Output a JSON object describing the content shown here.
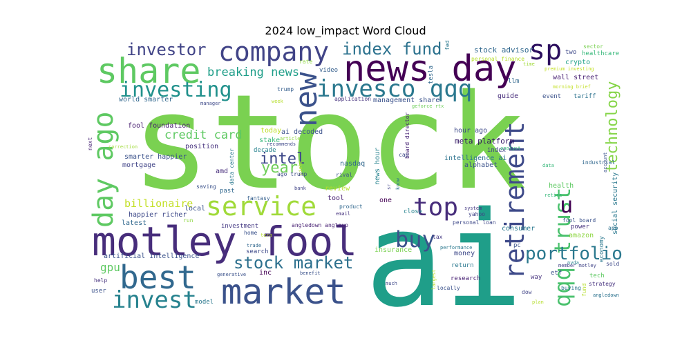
{
  "chart_data": {
    "type": "wordcloud",
    "title": "2024 low_impact Word Cloud",
    "words": [
      {
        "text": "stock",
        "color": "#7ad151"
      },
      {
        "text": "ai",
        "color": "#1f9e89"
      },
      {
        "text": "motley fool",
        "color": "#472d7b"
      },
      {
        "text": "news day",
        "color": "#440154"
      },
      {
        "text": "market",
        "color": "#3b528b"
      },
      {
        "text": "share",
        "color": "#5ec962"
      },
      {
        "text": "company",
        "color": "#414487"
      },
      {
        "text": "best",
        "color": "#31688e"
      },
      {
        "text": "service",
        "color": "#a0da39"
      },
      {
        "text": "day ago",
        "color": "#5ec962"
      },
      {
        "text": "retirement",
        "color": "#3e4a89"
      },
      {
        "text": "invest",
        "color": "#26828e"
      },
      {
        "text": "invesco qqq",
        "color": "#2a788e"
      },
      {
        "text": "new",
        "color": "#3b528b"
      },
      {
        "text": "sp",
        "color": "#2c0f5e"
      },
      {
        "text": "investing",
        "color": "#21918c"
      },
      {
        "text": "top",
        "color": "#472d7b"
      },
      {
        "text": "qqq trust",
        "color": "#4ac16d"
      },
      {
        "text": "stock market",
        "color": "#2d708e"
      },
      {
        "text": "portfolio",
        "color": "#2a788e"
      },
      {
        "text": "technology",
        "color": "#86d549"
      },
      {
        "text": "buy",
        "color": "#3b528b"
      },
      {
        "text": "index fund",
        "color": "#2c728e"
      },
      {
        "text": "investor",
        "color": "#414487"
      },
      {
        "text": "intel",
        "color": "#3e4989"
      },
      {
        "text": "year",
        "color": "#6ece58"
      },
      {
        "text": "u",
        "color": "#440154"
      },
      {
        "text": "breaking news",
        "color": "#1f9e89"
      },
      {
        "text": "credit card",
        "color": "#5ec962"
      },
      {
        "text": "billionaire",
        "color": "#c2df23"
      },
      {
        "text": "gpu",
        "color": "#5ec962"
      },
      {
        "text": "stock advisor",
        "color": "#31688e"
      },
      {
        "text": "tesla",
        "color": "#31688e"
      },
      {
        "text": "video",
        "color": "#355f8d"
      },
      {
        "text": "personal finance",
        "color": "#b5de2b"
      },
      {
        "text": "sector",
        "color": "#7ad151"
      },
      {
        "text": "two",
        "color": "#3e4989"
      },
      {
        "text": "healthcare",
        "color": "#35b779"
      },
      {
        "text": "crypto",
        "color": "#1fa188"
      },
      {
        "text": "wall street",
        "color": "#482173"
      },
      {
        "text": "premium investing",
        "color": "#c2df23"
      },
      {
        "text": "time",
        "color": "#a0da39"
      },
      {
        "text": "morning brief",
        "color": "#c2df23"
      },
      {
        "text": "llm",
        "color": "#31688e"
      },
      {
        "text": "tariff",
        "color": "#2c728e"
      },
      {
        "text": "event",
        "color": "#3b528b"
      },
      {
        "text": "guide",
        "color": "#472d7b"
      },
      {
        "text": "management share",
        "color": "#3b528b"
      },
      {
        "text": "application",
        "color": "#46327e"
      },
      {
        "text": "geforce rtx",
        "color": "#6ece58"
      },
      {
        "text": "rate",
        "color": "#8fd744"
      },
      {
        "text": "fed",
        "color": "#2a788e"
      },
      {
        "text": "world smarter",
        "color": "#31688e"
      },
      {
        "text": "trump",
        "color": "#355f8d"
      },
      {
        "text": "manager",
        "color": "#3e4989"
      },
      {
        "text": "week",
        "color": "#b5de2b"
      },
      {
        "text": "fool foundation",
        "color": "#481f70"
      },
      {
        "text": "ai decoded",
        "color": "#3b528b"
      },
      {
        "text": "today",
        "color": "#bddf26"
      },
      {
        "text": "stake",
        "color": "#35b779"
      },
      {
        "text": "decade",
        "color": "#26828e"
      },
      {
        "text": "article",
        "color": "#8fd744"
      },
      {
        "text": "recommends",
        "color": "#3e4989"
      },
      {
        "text": "board director",
        "color": "#482475"
      },
      {
        "text": "hour ago",
        "color": "#3e4a89"
      },
      {
        "text": "meta platform",
        "color": "#2c0f5e"
      },
      {
        "text": "index",
        "color": "#414487"
      },
      {
        "text": "intelligence ai",
        "color": "#2c728e"
      },
      {
        "text": "alphabet",
        "color": "#3b528b"
      },
      {
        "text": "analyst",
        "color": "#35b779"
      },
      {
        "text": "position",
        "color": "#46327e"
      },
      {
        "text": "correction",
        "color": "#a0da39"
      },
      {
        "text": "smarter happier",
        "color": "#3b528b"
      },
      {
        "text": "mortgage",
        "color": "#414487"
      },
      {
        "text": "amd",
        "color": "#472d7b"
      },
      {
        "text": "data center",
        "color": "#2a788e"
      },
      {
        "text": "picks",
        "color": "#b5de2b"
      },
      {
        "text": "ago trump",
        "color": "#3e4989"
      },
      {
        "text": "nasdaq",
        "color": "#31688e"
      },
      {
        "text": "news hour",
        "color": "#26828e"
      },
      {
        "text": "rival",
        "color": "#3b528b"
      },
      {
        "text": "review",
        "color": "#b5de2b"
      },
      {
        "text": "cap",
        "color": "#3e4989"
      },
      {
        "text": "data",
        "color": "#35b779"
      },
      {
        "text": "industrial",
        "color": "#31688e"
      },
      {
        "text": "account",
        "color": "#3b528b"
      },
      {
        "text": "social security",
        "color": "#2a788e"
      },
      {
        "text": "health",
        "color": "#5ec962"
      },
      {
        "text": "retire",
        "color": "#35b779"
      },
      {
        "text": "next",
        "color": "#482475"
      },
      {
        "text": "saving",
        "color": "#3b528b"
      },
      {
        "text": "past",
        "color": "#31688e"
      },
      {
        "text": "local",
        "color": "#3b528b"
      },
      {
        "text": "happier richer",
        "color": "#3e4989"
      },
      {
        "text": "latest",
        "color": "#31688e"
      },
      {
        "text": "run",
        "color": "#8fd744"
      },
      {
        "text": "fantasy",
        "color": "#355f8d"
      },
      {
        "text": "bank",
        "color": "#414487"
      },
      {
        "text": "tool",
        "color": "#482173"
      },
      {
        "text": "product",
        "color": "#31688e"
      },
      {
        "text": "email",
        "color": "#46327e"
      },
      {
        "text": "one",
        "color": "#440154"
      },
      {
        "text": "close",
        "color": "#26828e"
      },
      {
        "text": "system",
        "color": "#443983"
      },
      {
        "text": "yahoo",
        "color": "#414487"
      },
      {
        "text": "personal loan",
        "color": "#3e4989"
      },
      {
        "text": "fool board",
        "color": "#3b528b"
      },
      {
        "text": "power",
        "color": "#46327e"
      },
      {
        "text": "app",
        "color": "#2c728e"
      },
      {
        "text": "consumer",
        "color": "#2a788e"
      },
      {
        "text": "tax",
        "color": "#443983"
      },
      {
        "text": "pc",
        "color": "#3b528b"
      },
      {
        "text": "amazon",
        "color": "#8fd744"
      },
      {
        "text": "economy",
        "color": "#2a788e"
      },
      {
        "text": "sold",
        "color": "#3e4989"
      },
      {
        "text": "investment",
        "color": "#443983"
      },
      {
        "text": "home",
        "color": "#3b528b"
      },
      {
        "text": "trade",
        "color": "#31688e"
      },
      {
        "text": "angledown angleup",
        "color": "#482173"
      },
      {
        "text": "tera",
        "color": "#b5de2b"
      },
      {
        "text": "search",
        "color": "#3e4989"
      },
      {
        "text": "insurance",
        "color": "#7ad151"
      },
      {
        "text": "performance",
        "color": "#2a788e"
      },
      {
        "text": "money",
        "color": "#3e4989"
      },
      {
        "text": "nvda",
        "color": "#26828e"
      },
      {
        "text": "member motley",
        "color": "#414487"
      },
      {
        "text": "artificial intelligence",
        "color": "#3b528b"
      },
      {
        "text": "inc",
        "color": "#440154"
      },
      {
        "text": "generative",
        "color": "#3b528b"
      },
      {
        "text": "benefit",
        "color": "#3b528b"
      },
      {
        "text": "return",
        "color": "#2a788e"
      },
      {
        "text": "etf",
        "color": "#3b528b"
      },
      {
        "text": "tech",
        "color": "#5ec962"
      },
      {
        "text": "research",
        "color": "#482173"
      },
      {
        "text": "way",
        "color": "#46327e"
      },
      {
        "text": "buying",
        "color": "#2c728e"
      },
      {
        "text": "strategy",
        "color": "#46327e"
      },
      {
        "text": "help",
        "color": "#46327e"
      },
      {
        "text": "much",
        "color": "#3e4989"
      },
      {
        "text": "locally",
        "color": "#3b528b"
      },
      {
        "text": "dow",
        "color": "#414487"
      },
      {
        "text": "plan",
        "color": "#b5de2b"
      },
      {
        "text": "fund",
        "color": "#b5de2b"
      },
      {
        "text": "angledown",
        "color": "#2c728e"
      },
      {
        "text": "user",
        "color": "#3b528b"
      },
      {
        "text": "model",
        "color": "#2a788e"
      },
      {
        "text": "largest",
        "color": "#bddf26"
      },
      {
        "text": "sr",
        "color": "#414487"
      },
      {
        "text": "know",
        "color": "#2c728e"
      }
    ]
  }
}
